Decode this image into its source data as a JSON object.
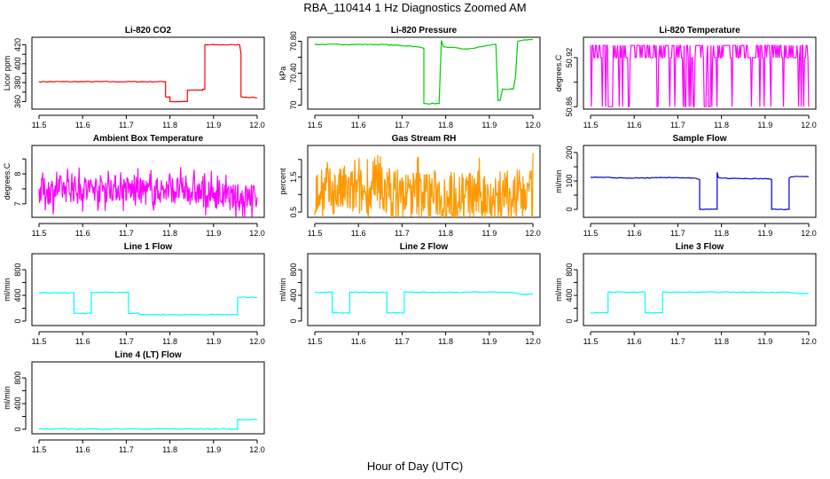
{
  "title": "RBA_110414  1 Hz Diagnostics Zoomed AM",
  "xlabel": "Hour of Day (UTC)",
  "chart_data": [
    {
      "type": "line",
      "title": "Li-820 CO2",
      "ylabel": "Licor ppm",
      "color": "#ff0000",
      "xlim": [
        11.5,
        12.0
      ],
      "xticks": [
        "11.5",
        "11.6",
        "11.7",
        "11.8",
        "11.9",
        "12.0"
      ],
      "ylim": [
        352,
        428
      ],
      "yticks": [
        360,
        370,
        380,
        390,
        400,
        410,
        420
      ],
      "x": [
        11.5,
        11.6,
        11.7,
        11.79,
        11.79,
        11.8,
        11.8,
        11.84,
        11.84,
        11.875,
        11.875,
        11.88,
        11.88,
        11.96,
        11.96,
        11.963,
        11.963,
        12.0
      ],
      "y": [
        381,
        381,
        381,
        381,
        365,
        365,
        360,
        360,
        372,
        372,
        373,
        373,
        420,
        420,
        420,
        410,
        365,
        364
      ]
    },
    {
      "type": "line",
      "title": "Li-820 Pressure",
      "ylabel": "kPa",
      "color": "#00cc00",
      "xlim": [
        11.5,
        12.0
      ],
      "xticks": [
        "11.5",
        "11.6",
        "11.7",
        "11.8",
        "11.9",
        "12.0"
      ],
      "ylim": [
        69.95,
        70.85
      ],
      "yticks": [
        70.0,
        70.2,
        70.4,
        70.6,
        70.8
      ],
      "x": [
        11.5,
        11.65,
        11.72,
        11.745,
        11.75,
        11.75,
        11.785,
        11.79,
        11.795,
        11.85,
        11.91,
        11.915,
        11.92,
        11.925,
        11.93,
        11.955,
        11.96,
        11.965,
        11.975,
        12.0
      ],
      "y": [
        70.76,
        70.76,
        70.74,
        70.72,
        70.71,
        70.02,
        70.02,
        70.81,
        70.73,
        70.7,
        70.76,
        70.76,
        70.06,
        70.06,
        70.2,
        70.2,
        70.35,
        70.8,
        70.81,
        70.82
      ]
    },
    {
      "type": "line",
      "title": "Li-820 Temperature",
      "ylabel": "degrees.C",
      "color": "#ff00ff",
      "xlim": [
        11.5,
        12.0
      ],
      "xticks": [
        "11.5",
        "11.6",
        "11.7",
        "11.8",
        "11.9",
        "12.0"
      ],
      "ylim": [
        50.857,
        50.945
      ],
      "yticks": [
        50.86,
        50.89,
        50.92
      ],
      "x": [
        11.5,
        11.52,
        11.55,
        11.56,
        11.62,
        11.68,
        11.7,
        11.74,
        11.76,
        11.78,
        11.8,
        11.83,
        11.86,
        11.88,
        11.9,
        11.92,
        11.94,
        11.97,
        11.99,
        12.0
      ],
      "y": [
        50.92,
        50.86,
        50.89,
        50.92,
        50.86,
        50.89,
        50.86,
        50.92,
        50.86,
        50.89,
        50.86,
        50.86,
        50.89,
        50.86,
        50.89,
        50.86,
        50.86,
        50.89,
        50.89,
        50.92
      ]
    },
    {
      "type": "line",
      "title": "Ambient Box Temperature",
      "ylabel": "degrees.C",
      "color": "#ff00ff",
      "xlim": [
        11.5,
        12.0
      ],
      "xticks": [
        "11.5",
        "11.6",
        "11.7",
        "11.8",
        "11.9",
        "12.0"
      ],
      "ylim": [
        6.55,
        8.95
      ],
      "yticks": [
        7.0,
        7.5,
        8.0,
        8.5
      ],
      "x": [
        11.5,
        11.55,
        11.6,
        11.65,
        11.7,
        11.75,
        11.8,
        11.85,
        11.9,
        11.95,
        12.0
      ],
      "y": [
        7.4,
        7.5,
        7.5,
        7.55,
        7.5,
        7.4,
        7.5,
        7.4,
        7.3,
        7.2,
        7.2
      ]
    },
    {
      "type": "line",
      "title": "Gas Stream RH",
      "ylabel": "percent",
      "color": "#ff9900",
      "xlim": [
        11.5,
        12.0
      ],
      "xticks": [
        "11.5",
        "11.6",
        "11.7",
        "11.8",
        "11.9",
        "12.0"
      ],
      "ylim": [
        0.35,
        2.4
      ],
      "yticks": [
        0.5,
        1.0,
        1.5,
        2.0
      ],
      "x": [
        11.5,
        11.55,
        11.6,
        11.65,
        11.7,
        11.75,
        11.8,
        11.85,
        11.9,
        11.95,
        12.0
      ],
      "y": [
        1.0,
        1.1,
        1.05,
        1.1,
        1.0,
        1.05,
        1.0,
        1.0,
        0.95,
        1.0,
        1.0
      ]
    },
    {
      "type": "line",
      "title": "Sample Flow",
      "ylabel": "ml/min",
      "color": "#0000cc",
      "xlim": [
        11.5,
        12.0
      ],
      "xticks": [
        "11.5",
        "11.6",
        "11.7",
        "11.8",
        "11.9",
        "12.0"
      ],
      "ylim": [
        -28,
        225
      ],
      "yticks": [
        0,
        50,
        100,
        150,
        200
      ],
      "x": [
        11.5,
        11.6,
        11.7,
        11.74,
        11.75,
        11.75,
        11.79,
        11.79,
        11.793,
        11.8,
        11.85,
        11.91,
        11.915,
        11.915,
        11.955,
        11.955,
        11.96,
        12.0
      ],
      "y": [
        113,
        110,
        112,
        110,
        105,
        0,
        0,
        130,
        112,
        110,
        108,
        108,
        105,
        0,
        0,
        110,
        115,
        115
      ]
    },
    {
      "type": "line",
      "title": "Line 1 Flow",
      "ylabel": "ml/min",
      "color": "#00ffff",
      "xlim": [
        11.5,
        12.0
      ],
      "xticks": [
        "11.5",
        "11.6",
        "11.7",
        "11.8",
        "11.9",
        "12.0"
      ],
      "ylim": [
        -70,
        1050
      ],
      "yticks": [
        0,
        200,
        400,
        600,
        800
      ],
      "x": [
        11.5,
        11.58,
        11.58,
        11.62,
        11.62,
        11.705,
        11.705,
        11.73,
        11.73,
        11.955,
        11.955,
        12.0
      ],
      "y": [
        440,
        440,
        120,
        120,
        450,
        450,
        120,
        120,
        100,
        100,
        370,
        370
      ]
    },
    {
      "type": "line",
      "title": "Line 2 Flow",
      "ylabel": "ml/min",
      "color": "#00ffff",
      "xlim": [
        11.5,
        12.0
      ],
      "xticks": [
        "11.5",
        "11.6",
        "11.7",
        "11.8",
        "11.9",
        "12.0"
      ],
      "ylim": [
        -70,
        1050
      ],
      "yticks": [
        0,
        200,
        400,
        600,
        800
      ],
      "x": [
        11.5,
        11.54,
        11.54,
        11.58,
        11.58,
        11.665,
        11.665,
        11.705,
        11.705,
        11.95,
        11.97,
        12.0
      ],
      "y": [
        450,
        450,
        130,
        130,
        450,
        450,
        130,
        130,
        450,
        450,
        420,
        420
      ]
    },
    {
      "type": "line",
      "title": "Line 3 Flow",
      "ylabel": "ml/min",
      "color": "#00ffff",
      "xlim": [
        11.5,
        12.0
      ],
      "xticks": [
        "11.5",
        "11.6",
        "11.7",
        "11.8",
        "11.9",
        "12.0"
      ],
      "ylim": [
        -70,
        1050
      ],
      "yticks": [
        0,
        200,
        400,
        600,
        800
      ],
      "x": [
        11.5,
        11.54,
        11.54,
        11.625,
        11.625,
        11.665,
        11.665,
        11.95,
        11.97,
        12.0
      ],
      "y": [
        130,
        130,
        450,
        450,
        130,
        130,
        450,
        450,
        430,
        430
      ]
    },
    {
      "type": "line",
      "title": "Line 4 (LT) Flow",
      "ylabel": "ml/min",
      "color": "#00ffff",
      "xlim": [
        11.5,
        12.0
      ],
      "xticks": [
        "11.5",
        "11.6",
        "11.7",
        "11.8",
        "11.9",
        "12.0"
      ],
      "ylim": [
        -70,
        1050
      ],
      "yticks": [
        0,
        200,
        400,
        600,
        800
      ],
      "x": [
        11.5,
        11.955,
        11.955,
        12.0
      ],
      "y": [
        5,
        5,
        150,
        150
      ]
    }
  ]
}
